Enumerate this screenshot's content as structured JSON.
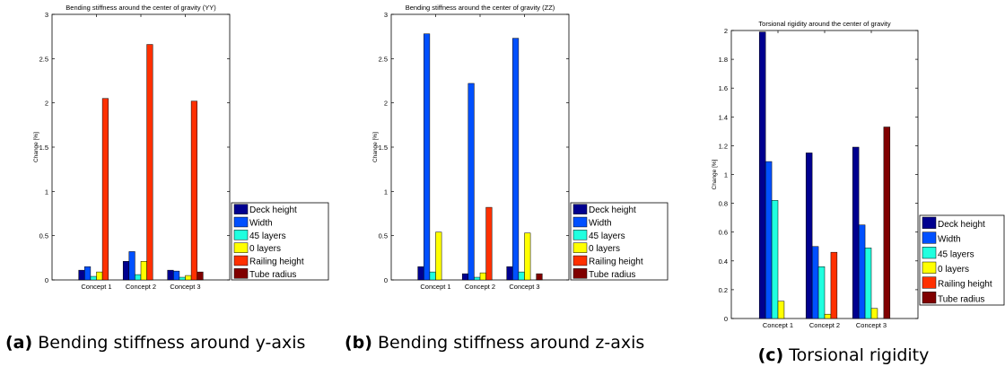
{
  "colors": {
    "Deck height": "#00008f",
    "Width": "#0050ff",
    "45 layers": "#20ffdf",
    "0 layers": "#ffff00",
    "Railing height": "#ff3000",
    "Tube radius": "#800000"
  },
  "chart_data": [
    {
      "type": "bar",
      "title": "Bending stiffness around the center of gravity (YY)",
      "xlabel": "",
      "ylabel": "Change [%]",
      "ylim": [
        0,
        3
      ],
      "yticks": [
        "0",
        "0.5",
        "1",
        "1.5",
        "2",
        "2.5",
        "3"
      ],
      "categories": [
        "Concept 1",
        "Concept 2",
        "Concept 3"
      ],
      "legend_position": "right",
      "series": [
        {
          "name": "Deck height",
          "values": [
            0.11,
            0.21,
            0.11
          ]
        },
        {
          "name": "Width",
          "values": [
            0.15,
            0.32,
            0.1
          ]
        },
        {
          "name": "45 layers",
          "values": [
            0.04,
            0.06,
            0.03
          ]
        },
        {
          "name": "0 layers",
          "values": [
            0.09,
            0.21,
            0.05
          ]
        },
        {
          "name": "Railing height",
          "values": [
            2.05,
            2.66,
            2.02
          ]
        },
        {
          "name": "Tube radius",
          "values": [
            0,
            0,
            0.09
          ]
        }
      ]
    },
    {
      "type": "bar",
      "title": "Bending stiffness around the center of gravity (ZZ)",
      "xlabel": "",
      "ylabel": "Change [%]",
      "ylim": [
        0,
        3
      ],
      "yticks": [
        "0",
        "0.5",
        "1",
        "1.5",
        "2",
        "2.5",
        "3"
      ],
      "categories": [
        "Concept 1",
        "Concept 2",
        "Concept 3"
      ],
      "legend_position": "right",
      "series": [
        {
          "name": "Deck height",
          "values": [
            0.15,
            0.07,
            0.15
          ]
        },
        {
          "name": "Width",
          "values": [
            2.78,
            2.22,
            2.73
          ]
        },
        {
          "name": "45 layers",
          "values": [
            0.09,
            0.03,
            0.09
          ]
        },
        {
          "name": "0 layers",
          "values": [
            0.54,
            0.08,
            0.53
          ]
        },
        {
          "name": "Railing height",
          "values": [
            0,
            0.82,
            0
          ]
        },
        {
          "name": "Tube radius",
          "values": [
            0,
            0,
            0.07
          ]
        }
      ]
    },
    {
      "type": "bar",
      "title": "Torsional rigidity around the center of gravity",
      "xlabel": "",
      "ylabel": "Change [%]",
      "ylim": [
        0,
        2
      ],
      "yticks": [
        "0",
        "0.2",
        "0.4",
        "0.6",
        "0.8",
        "1",
        "1.2",
        "1.4",
        "1.6",
        "1.8",
        "2"
      ],
      "categories": [
        "Concept 1",
        "Concept 2",
        "Concept 3"
      ],
      "legend_position": "right",
      "series": [
        {
          "name": "Deck height",
          "values": [
            1.99,
            1.15,
            1.19
          ]
        },
        {
          "name": "Width",
          "values": [
            1.09,
            0.5,
            0.65
          ]
        },
        {
          "name": "45 layers",
          "values": [
            0.82,
            0.36,
            0.49
          ]
        },
        {
          "name": "0 layers",
          "values": [
            0.12,
            0.03,
            0.07
          ]
        },
        {
          "name": "Railing height",
          "values": [
            0,
            0.46,
            0
          ]
        },
        {
          "name": "Tube radius",
          "values": [
            0,
            0,
            1.33
          ]
        }
      ]
    }
  ],
  "captions": [
    {
      "label": "(a)",
      "text": "Bending stiffness around y-axis"
    },
    {
      "label": "(b)",
      "text": "Bending stiffness around z-axis"
    },
    {
      "label": "(c)",
      "text": "Torsional rigidity"
    }
  ]
}
